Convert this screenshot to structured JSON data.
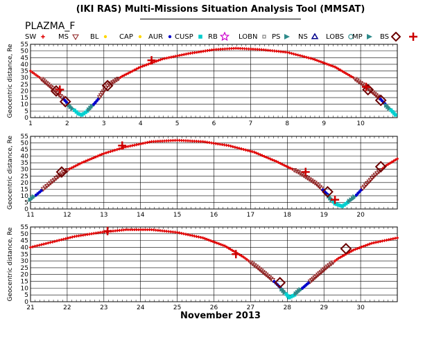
{
  "header": {
    "title": "(IKI RAS) Multi-Missions Situation Analysis Tool (MMSAT)",
    "subtitle": "PLAZMA_F"
  },
  "legend": [
    {
      "label": "SW",
      "marker": "plus-small",
      "color": "#e00000"
    },
    {
      "label": "MS",
      "marker": "triangle-down",
      "color": "#8b1a1a"
    },
    {
      "label": "BL",
      "marker": "dot",
      "color": "#ffd700"
    },
    {
      "label": "CAP",
      "marker": "dot",
      "color": "#ffd700"
    },
    {
      "label": "AUR",
      "marker": "dot",
      "color": "#0000cc"
    },
    {
      "label": "CUSP",
      "marker": "square",
      "color": "#00cccc"
    },
    {
      "label": "RB",
      "marker": "star",
      "color": "#cc00cc"
    },
    {
      "label": "LOBN",
      "marker": "square-small",
      "color": "#808080"
    },
    {
      "label": "PS",
      "marker": "triangle",
      "color": "#2e8b8b"
    },
    {
      "label": "NS",
      "marker": "triangle-up",
      "color": "#00008b"
    },
    {
      "label": "LOBS",
      "marker": "circle",
      "color": "#2e8b8b"
    },
    {
      "label": "MP",
      "marker": "triangle",
      "color": "#2e8b8b"
    },
    {
      "label": "BS",
      "marker": "diamond",
      "color": "#6b0000"
    },
    {
      "label": "",
      "marker": "plus-big",
      "color": "#cc0000"
    }
  ],
  "chart_data": {
    "type": "scatter",
    "ylabel": "Geocentric distance, Re",
    "xlabel": "November 2013",
    "ylim": [
      0,
      55
    ],
    "yticks": [
      0,
      5,
      10,
      15,
      20,
      25,
      30,
      35,
      40,
      45,
      50,
      55
    ],
    "panels": [
      {
        "xlim": [
          1,
          11
        ],
        "xticks": [
          "1",
          "2",
          "3",
          "4",
          "5",
          "6",
          "7",
          "8",
          "9",
          "10"
        ],
        "xtick_values": [
          1,
          2,
          3,
          4,
          5,
          6,
          7,
          8,
          9,
          10
        ],
        "orbit_points": [
          [
            1,
            35
          ],
          [
            1.3,
            29
          ],
          [
            1.6,
            22
          ],
          [
            1.9,
            14
          ],
          [
            2.1,
            8
          ],
          [
            2.3,
            3
          ],
          [
            2.4,
            2
          ],
          [
            2.6,
            6
          ],
          [
            2.85,
            14
          ],
          [
            3.1,
            24
          ],
          [
            3.5,
            31
          ],
          [
            4,
            38
          ],
          [
            4.6,
            44
          ],
          [
            5.3,
            48
          ],
          [
            6,
            51
          ],
          [
            6.6,
            52
          ],
          [
            7.3,
            51
          ],
          [
            8,
            49
          ],
          [
            8.7,
            44
          ],
          [
            9.3,
            38
          ],
          [
            9.8,
            30
          ],
          [
            10.2,
            22
          ],
          [
            10.5,
            15
          ],
          [
            10.75,
            8
          ],
          [
            10.95,
            2
          ]
        ],
        "bow_shock": [
          [
            1.7,
            20
          ],
          [
            1.95,
            12
          ],
          [
            3.1,
            24
          ],
          [
            10.2,
            21
          ],
          [
            10.55,
            13
          ]
        ],
        "bs_plus": [
          [
            1.8,
            21
          ],
          [
            4.3,
            43
          ],
          [
            10.15,
            23
          ]
        ]
      },
      {
        "xlim": [
          11,
          21
        ],
        "xticks": [
          "11",
          "12",
          "13",
          "14",
          "15",
          "16",
          "17",
          "18",
          "19",
          "20"
        ],
        "xtick_values": [
          11,
          12,
          13,
          14,
          15,
          16,
          17,
          18,
          19,
          20
        ],
        "orbit_points": [
          [
            11,
            7
          ],
          [
            11.3,
            14
          ],
          [
            11.6,
            21
          ],
          [
            11.9,
            28
          ],
          [
            12.4,
            35
          ],
          [
            13,
            42
          ],
          [
            13.6,
            47
          ],
          [
            14.3,
            51
          ],
          [
            15,
            52
          ],
          [
            15.7,
            51
          ],
          [
            16.4,
            48
          ],
          [
            17.1,
            43
          ],
          [
            17.7,
            36
          ],
          [
            18.3,
            28
          ],
          [
            18.8,
            19
          ],
          [
            19.1,
            11
          ],
          [
            19.3,
            4
          ],
          [
            19.5,
            2
          ],
          [
            19.8,
            8
          ],
          [
            20.1,
            17
          ],
          [
            20.4,
            26
          ],
          [
            20.7,
            33
          ],
          [
            21,
            38
          ]
        ],
        "bow_shock": [
          [
            11.85,
            28
          ],
          [
            19.1,
            13
          ],
          [
            20.55,
            32
          ]
        ],
        "bs_plus": [
          [
            13.5,
            48
          ],
          [
            18.5,
            28
          ],
          [
            19.3,
            7
          ]
        ]
      },
      {
        "xlim": [
          21,
          31
        ],
        "xticks": [
          "21",
          "22",
          "23",
          "24",
          "25",
          "26",
          "27",
          "28",
          "29",
          "30"
        ],
        "xtick_values": [
          21,
          22,
          23,
          24,
          25,
          26,
          27,
          28,
          29,
          30
        ],
        "orbit_points": [
          [
            21,
            40
          ],
          [
            21.6,
            44
          ],
          [
            22.2,
            48
          ],
          [
            22.9,
            51
          ],
          [
            23.6,
            53
          ],
          [
            24.3,
            53
          ],
          [
            25,
            51
          ],
          [
            25.7,
            47
          ],
          [
            26.3,
            41
          ],
          [
            26.8,
            33
          ],
          [
            27.2,
            25
          ],
          [
            27.6,
            16
          ],
          [
            27.9,
            8
          ],
          [
            28.05,
            3
          ],
          [
            28.2,
            5
          ],
          [
            28.5,
            12
          ],
          [
            28.8,
            19
          ],
          [
            29.1,
            26
          ],
          [
            29.4,
            32
          ],
          [
            29.8,
            38
          ],
          [
            30.3,
            43
          ],
          [
            31,
            47
          ]
        ],
        "bow_shock": [
          [
            27.8,
            14
          ],
          [
            29.6,
            39
          ]
        ],
        "bs_plus": [
          [
            23.1,
            52
          ],
          [
            26.6,
            35
          ]
        ]
      }
    ]
  }
}
